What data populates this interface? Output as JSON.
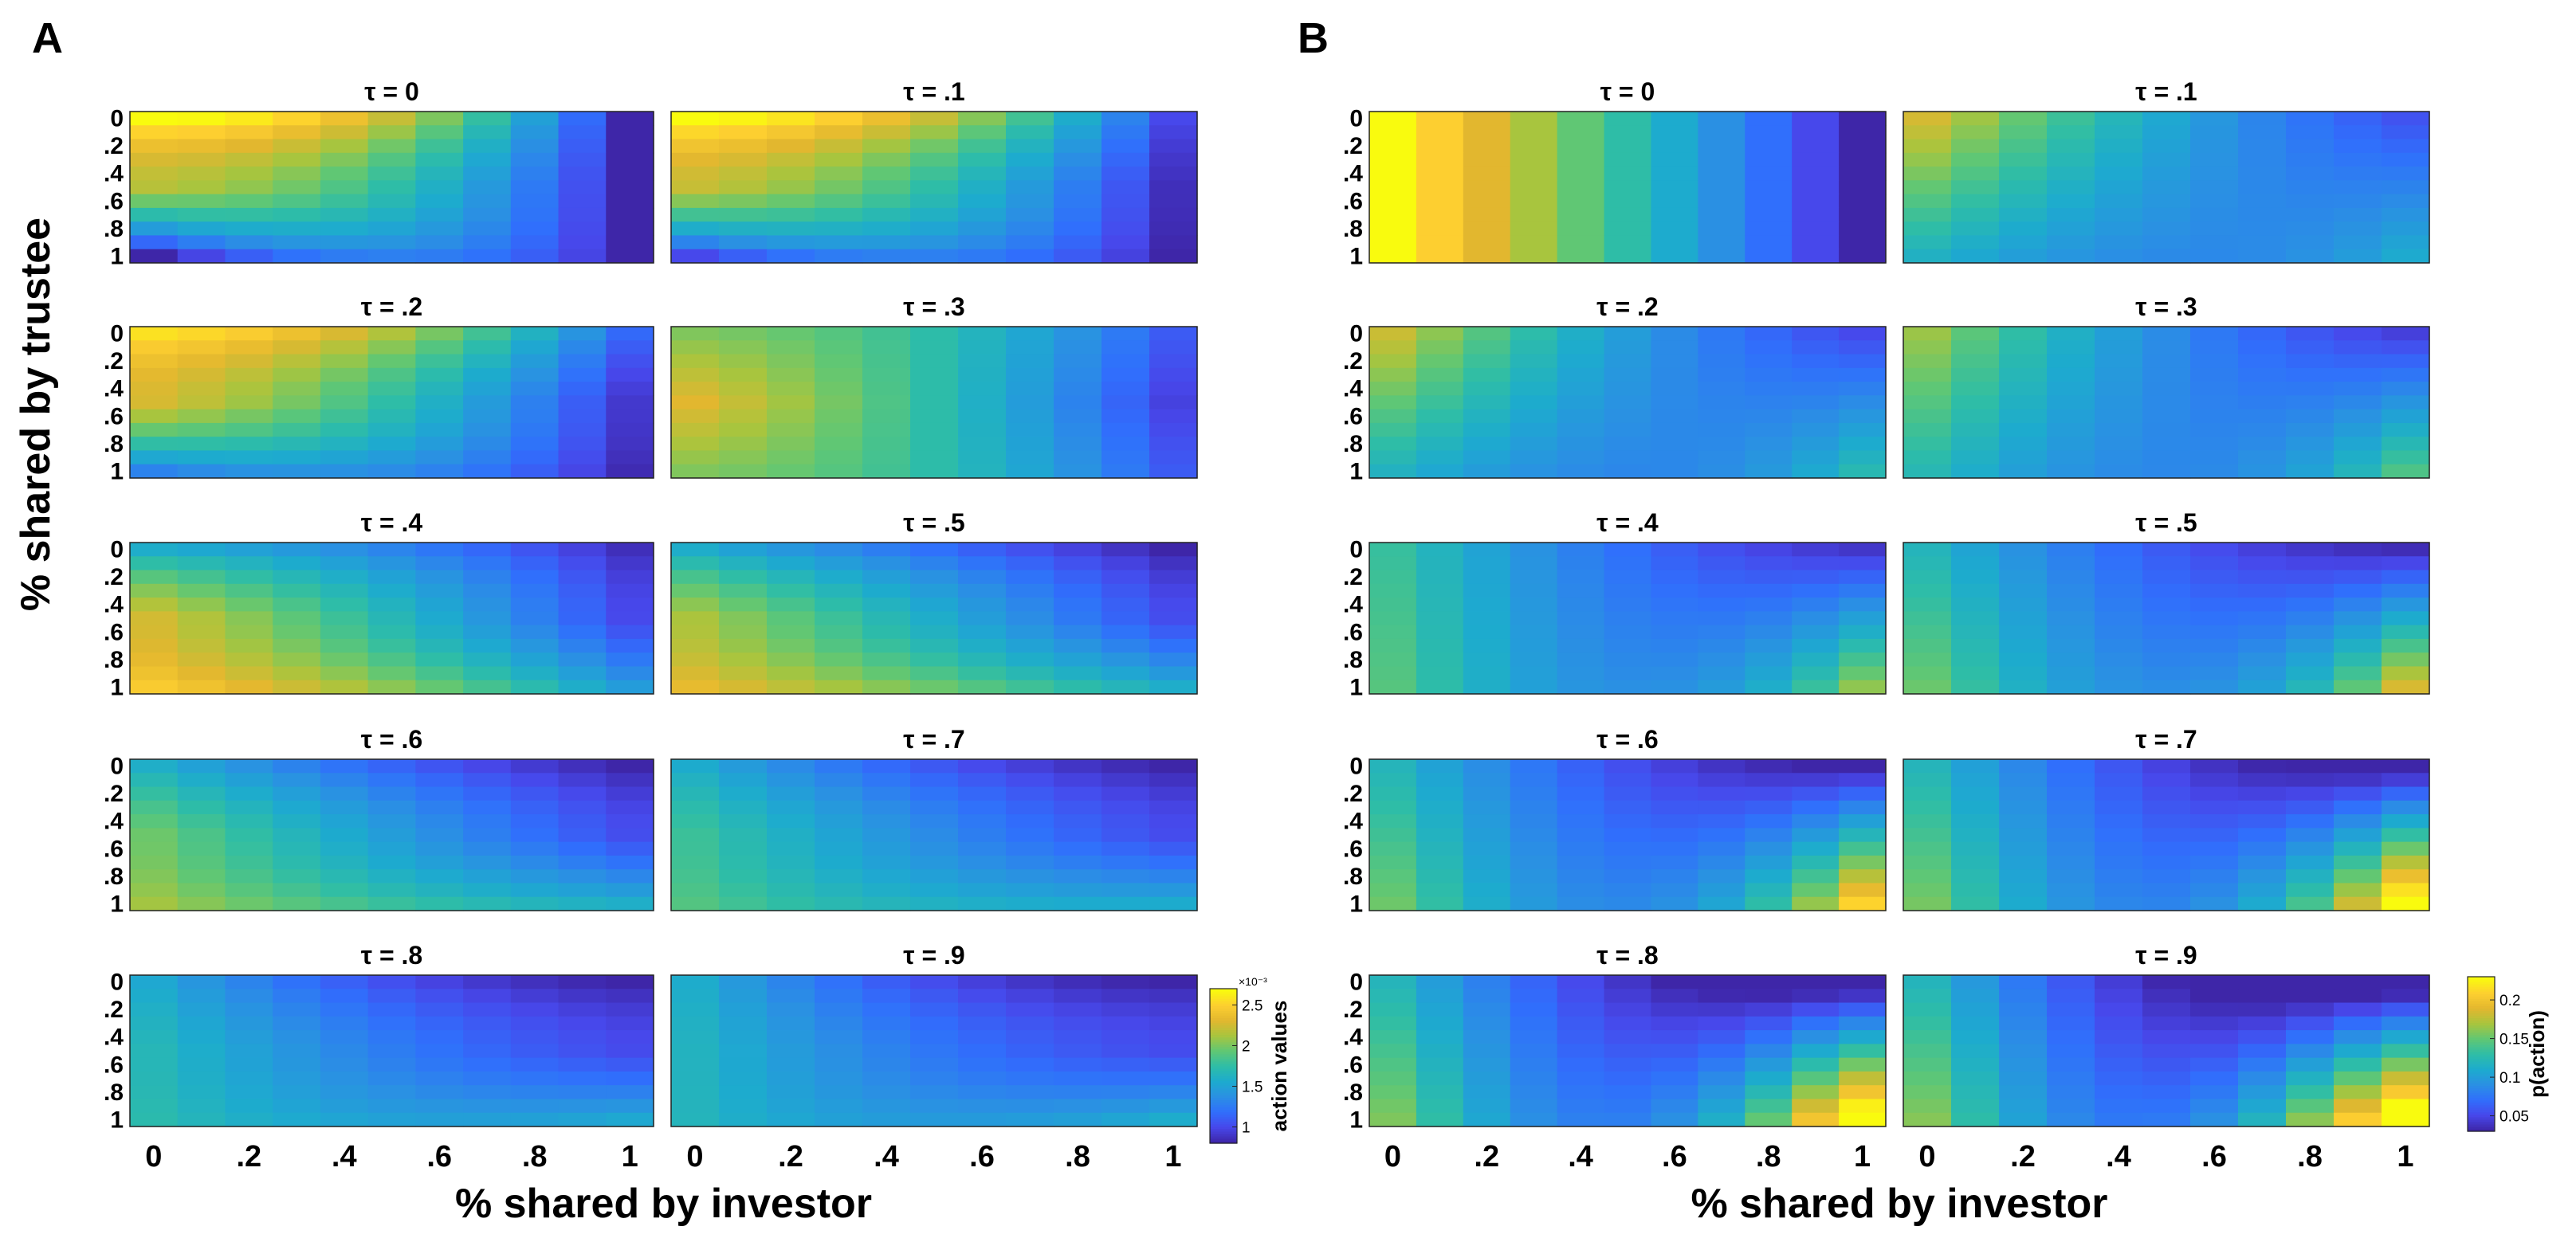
{
  "chart_data": {
    "type": "heatmap",
    "x": [
      0,
      0.1,
      0.2,
      0.3,
      0.4,
      0.5,
      0.6,
      0.7,
      0.8,
      0.9,
      1
    ],
    "y": [
      0,
      0.1,
      0.2,
      0.3,
      0.4,
      0.5,
      0.6,
      0.7,
      0.8,
      0.9,
      1
    ],
    "y_tick_labels": [
      "0",
      ".2",
      ".4",
      ".6",
      ".8",
      "1"
    ],
    "x_tick_labels": [
      "0",
      ".2",
      ".4",
      ".6",
      ".8",
      "1"
    ],
    "ylabel": "% shared by trustee",
    "panels": [
      {
        "letter": "A",
        "xlabel": "% shared by investor",
        "colorbar": {
          "label": "action values",
          "exponent": "×10⁻³",
          "ticks": [
            "2.5",
            "2",
            "1.5",
            "1"
          ],
          "range": [
            0.8,
            2.7
          ]
        },
        "subplots": [
          {
            "title": "τ = 0",
            "tau": 0.0,
            "range": [
              0.8,
              2.7
            ]
          },
          {
            "title": "τ = .1",
            "tau": 0.1,
            "range": [
              0.8,
              2.7
            ]
          },
          {
            "title": "τ = .2",
            "tau": 0.2,
            "range": [
              0.8,
              2.7
            ]
          },
          {
            "title": "τ = .3",
            "tau": 0.3,
            "range": [
              0.8,
              2.7
            ]
          },
          {
            "title": "τ = .4",
            "tau": 0.4,
            "range": [
              0.8,
              2.7
            ]
          },
          {
            "title": "τ = .5",
            "tau": 0.5,
            "range": [
              0.8,
              2.7
            ]
          },
          {
            "title": "τ = .6",
            "tau": 0.6,
            "range": [
              0.8,
              2.7
            ]
          },
          {
            "title": "τ = .7",
            "tau": 0.7,
            "range": [
              0.8,
              2.7
            ]
          },
          {
            "title": "τ = .8",
            "tau": 0.8,
            "range": [
              0.8,
              2.7
            ]
          },
          {
            "title": "τ = .9",
            "tau": 0.9,
            "range": [
              0.8,
              2.7
            ]
          }
        ]
      },
      {
        "letter": "B",
        "xlabel": "% shared by investor",
        "colorbar": {
          "label": "p(action)",
          "exponent": "",
          "ticks": [
            "0.2",
            "0.15",
            "0.1",
            "0.05"
          ],
          "range": [
            0.03,
            0.23
          ]
        },
        "subplots": [
          {
            "title": "τ = 0",
            "tau": 0.0,
            "range": [
              0.03,
              0.23
            ]
          },
          {
            "title": "τ = .1",
            "tau": 0.1,
            "range": [
              0.03,
              0.23
            ]
          },
          {
            "title": "τ = .2",
            "tau": 0.2,
            "range": [
              0.03,
              0.23
            ]
          },
          {
            "title": "τ = .3",
            "tau": 0.3,
            "range": [
              0.03,
              0.23
            ]
          },
          {
            "title": "τ = .4",
            "tau": 0.4,
            "range": [
              0.03,
              0.23
            ]
          },
          {
            "title": "τ = .5",
            "tau": 0.5,
            "range": [
              0.03,
              0.23
            ]
          },
          {
            "title": "τ = .6",
            "tau": 0.6,
            "range": [
              0.03,
              0.23
            ]
          },
          {
            "title": "τ = .7",
            "tau": 0.7,
            "range": [
              0.03,
              0.23
            ]
          },
          {
            "title": "τ = .8",
            "tau": 0.8,
            "range": [
              0.03,
              0.23
            ]
          },
          {
            "title": "τ = .9",
            "tau": 0.9,
            "range": [
              0.03,
              0.23
            ]
          }
        ]
      }
    ]
  }
}
